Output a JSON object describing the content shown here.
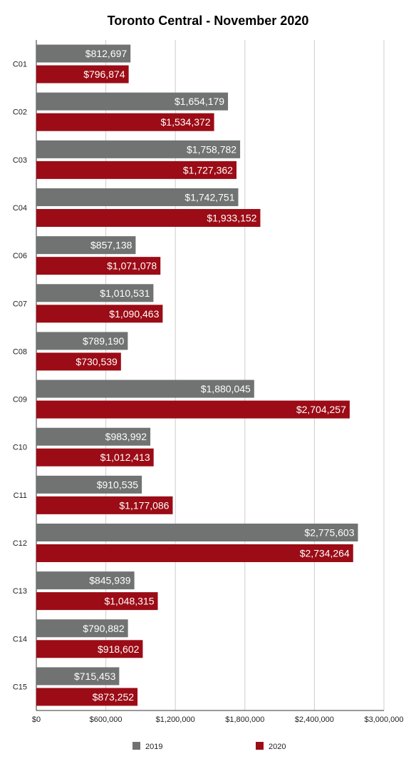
{
  "chart_data": {
    "type": "bar",
    "orientation": "horizontal",
    "title": "Toronto Central - November 2020",
    "categories": [
      "C01",
      "C02",
      "C03",
      "C04",
      "C06",
      "C07",
      "C08",
      "C09",
      "C10",
      "C11",
      "C12",
      "C13",
      "C14",
      "C15"
    ],
    "series": [
      {
        "name": "2019",
        "color": "#707372",
        "values": [
          812697,
          1654179,
          1758782,
          1742751,
          857138,
          1010531,
          789190,
          1880045,
          983992,
          910535,
          2775603,
          845939,
          790882,
          715453
        ],
        "labels": [
          "$812,697",
          "$1,654,179",
          "$1,758,782",
          "$1,742,751",
          "$857,138",
          "$1,010,531",
          "$789,190",
          "$1,880,045",
          "$983,992",
          "$910,535",
          "$2,775,603",
          "$845,939",
          "$790,882",
          "$715,453"
        ]
      },
      {
        "name": "2020",
        "color": "#9b0c16",
        "values": [
          796874,
          1534372,
          1727362,
          1933152,
          1071078,
          1090463,
          730539,
          2704257,
          1012413,
          1177086,
          2734264,
          1048315,
          918602,
          873252
        ],
        "labels": [
          "$796,874",
          "$1,534,372",
          "$1,727,362",
          "$1,933,152",
          "$1,071,078",
          "$1,090,463",
          "$730,539",
          "$2,704,257",
          "$1,012,413",
          "$1,177,086",
          "$2,734,264",
          "$1,048,315",
          "$918,602",
          "$873,252"
        ]
      }
    ],
    "xlim": [
      0,
      3000000
    ],
    "x_ticks": [
      0,
      600000,
      1200000,
      1800000,
      2400000,
      3000000
    ],
    "x_tick_labels": [
      "$0",
      "$600,000",
      "$1,200,000",
      "$1,800,000",
      "$2,400,000",
      "$3,000,000"
    ],
    "grid": "vertical",
    "legend_position": "bottom"
  }
}
